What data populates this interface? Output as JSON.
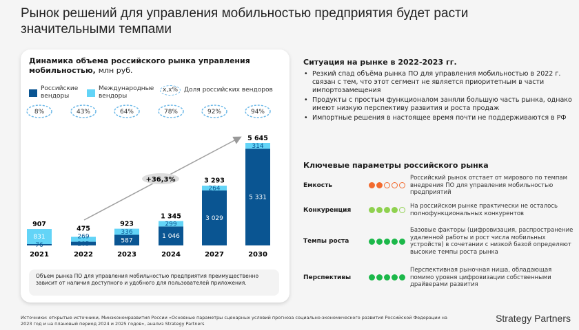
{
  "title": "Рынок решений для управления мобильностью предприятия будет расти значительными темпами",
  "chart_data": {
    "type": "bar",
    "title": "Динамика объема российского рынка управления мобильностью,",
    "unit": "млн руб.",
    "categories": [
      "2021",
      "2022",
      "2023",
      "2024",
      "2027",
      "2030"
    ],
    "series": [
      {
        "name": "Российские вендоры",
        "color": "#0a5592",
        "values": [
          76,
          205,
          587,
          1046,
          3029,
          5331
        ]
      },
      {
        "name": "Международные вендоры",
        "color": "#63d4f7",
        "values": [
          831,
          269,
          336,
          299,
          264,
          314
        ]
      }
    ],
    "totals": [
      "907",
      "475",
      "923",
      "1 345",
      "3 293",
      "5 645"
    ],
    "labels_ru": [
      "76",
      "205",
      "587",
      "1 046",
      "3 029",
      "5 331"
    ],
    "labels_int": [
      "831",
      "269",
      "336",
      "299",
      "264",
      "314"
    ],
    "share_legend": "x,x%",
    "share_label": "Доля российских вендоров",
    "shares": [
      "8%",
      "43%",
      "64%",
      "78%",
      "92%",
      "94%"
    ],
    "cagr": "+36,3%"
  },
  "note": "Объем рынка ПО для управления мобильностью предприятия преимущественно зависит от наличия доступного и удобного для пользователей приложения.",
  "situation": {
    "title": "Ситуация на рынке в 2022-2023 гг.",
    "bullets": [
      "Резкий спад объёма рынка ПО для управления мобильностью в 2022 г. связан с тем, что этот сегмент не является приоритетным в части импортозамещения",
      "Продукты с простым функционалом заняли большую часть рынка, однако имеют низкую перспективу развития и роста продаж",
      "Импортные решения в настоящее время почти не поддерживаются в РФ"
    ]
  },
  "params": {
    "title": "Ключевые параметры российского рынка",
    "rows": [
      {
        "label": "Емкость",
        "score": 2,
        "color": "#f26a2e",
        "text": "Российский рынок отстает от мирового по темпам внедрения ПО для управления мобильностью предприятий"
      },
      {
        "label": "Конкуренция",
        "score": 4,
        "color": "#8fd14f",
        "text": "На российском рынке практически не осталось полнофункциональных конкурентов"
      },
      {
        "label": "Темпы роста",
        "score": 5,
        "color": "#1cb84a",
        "text": "Базовые факторы (цифровизация, распространение удаленной работы и рост числа мобильных устройств) в сочетании с низкой базой определяют высокие темпы роста рынка"
      },
      {
        "label": "Перспективы",
        "score": 5,
        "color": "#1cb84a",
        "text": "Перспективная рыночная ниша, обладающая помимо уровня цифровизации собственными драйверами развития"
      }
    ]
  },
  "sources": "Источники: открытые источники, Минэкономразвития России «Основные параметры сценарных условий прогноза социально-экономического развития Российской Федерации на 2023 год и на плановый период 2024 и 2025 годов», анализ Strategy Partners",
  "logo": "Strategy Partners"
}
